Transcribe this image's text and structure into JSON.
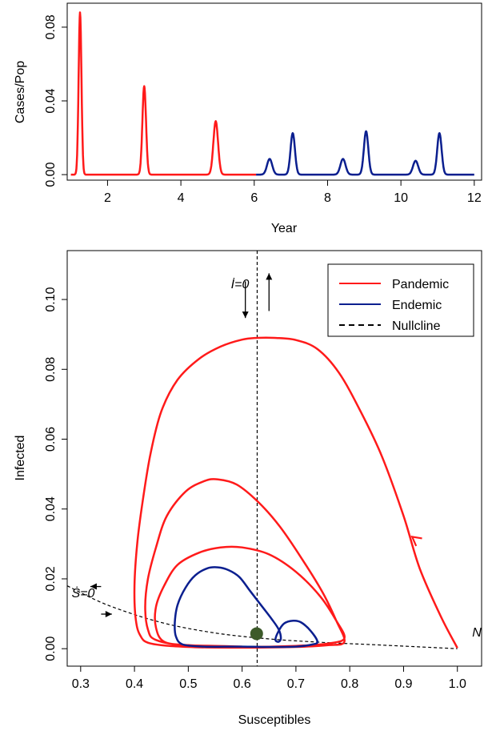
{
  "colors": {
    "pandemic": "#ff1a1a",
    "endemic": "#0b1f8f",
    "fixed_point": "#3d5a2a",
    "axis": "#000000"
  },
  "chart_data": [
    {
      "type": "line",
      "xlabel": "Year",
      "ylabel": "Cases/Pop",
      "xlim": [
        0.9,
        12.2
      ],
      "ylim": [
        -0.003,
        0.093
      ],
      "x_ticks": [
        2,
        4,
        6,
        8,
        10,
        12
      ],
      "y_ticks": [
        0.0,
        0.04,
        0.08
      ],
      "x_tick_labels": [
        "2",
        "4",
        "6",
        "8",
        "10",
        "12"
      ],
      "y_tick_labels": [
        "0.00",
        "0.04",
        "0.08"
      ],
      "series": [
        {
          "color": "pandemic",
          "x_range": [
            1.0,
            6.05
          ],
          "peaks": [
            {
              "x": 1.25,
              "y": 0.088,
              "w": 0.055
            },
            {
              "x": 3.0,
              "y": 0.048,
              "w": 0.07
            },
            {
              "x": 4.95,
              "y": 0.029,
              "w": 0.09
            }
          ]
        },
        {
          "color": "endemic",
          "x_range": [
            6.05,
            12.0
          ],
          "peaks": [
            {
              "x": 6.42,
              "y": 0.0085,
              "w": 0.1
            },
            {
              "x": 7.05,
              "y": 0.0225,
              "w": 0.085
            },
            {
              "x": 8.42,
              "y": 0.0085,
              "w": 0.1
            },
            {
              "x": 9.05,
              "y": 0.0235,
              "w": 0.085
            },
            {
              "x": 10.4,
              "y": 0.0075,
              "w": 0.1
            },
            {
              "x": 11.05,
              "y": 0.0225,
              "w": 0.085
            }
          ]
        }
      ]
    },
    {
      "type": "line",
      "xlabel": "Susceptibles",
      "ylabel": "Infected",
      "xlim": [
        0.275,
        1.045
      ],
      "ylim": [
        -0.005,
        0.114
      ],
      "x_ticks": [
        0.3,
        0.4,
        0.5,
        0.6,
        0.7,
        0.8,
        0.9,
        1.0
      ],
      "y_ticks": [
        0.0,
        0.02,
        0.04,
        0.06,
        0.08,
        0.1
      ],
      "x_tick_labels": [
        "0.3",
        "0.4",
        "0.5",
        "0.6",
        "0.7",
        "0.8",
        "0.9",
        "1.0"
      ],
      "y_tick_labels": [
        "0.00",
        "0.02",
        "0.04",
        "0.06",
        "0.08",
        "0.10"
      ],
      "legend": {
        "placement": "top-right",
        "entries": [
          {
            "label": "Pandemic",
            "style": "solid",
            "color": "pandemic"
          },
          {
            "label": "Endemic",
            "style": "solid",
            "color": "endemic"
          },
          {
            "label": "Nullcline",
            "style": "dashed",
            "color": "axis"
          }
        ]
      },
      "annotations": {
        "i_nullcline": "İ=0",
        "s_nullcline": "Ṡ=0",
        "n_label": "N"
      },
      "i_nullcline_x": 0.628,
      "s_nullcline": [
        [
          0.275,
          0.018
        ],
        [
          0.35,
          0.0125
        ],
        [
          0.45,
          0.0075
        ],
        [
          0.55,
          0.0045
        ],
        [
          0.65,
          0.0028
        ],
        [
          0.75,
          0.0018
        ],
        [
          0.85,
          0.0011
        ],
        [
          1.0,
          0.0
        ]
      ],
      "fixed_point": [
        0.627,
        0.0043
      ],
      "pandemic_path": [
        [
          1.0,
          0.0002
        ],
        [
          0.97,
          0.009
        ],
        [
          0.93,
          0.023
        ],
        [
          0.9,
          0.038
        ],
        [
          0.86,
          0.055
        ],
        [
          0.82,
          0.068
        ],
        [
          0.78,
          0.079
        ],
        [
          0.74,
          0.0858
        ],
        [
          0.7,
          0.0884
        ],
        [
          0.66,
          0.089
        ],
        [
          0.628,
          0.089
        ],
        [
          0.6,
          0.0885
        ],
        [
          0.56,
          0.0865
        ],
        [
          0.52,
          0.083
        ],
        [
          0.48,
          0.077
        ],
        [
          0.45,
          0.068
        ],
        [
          0.43,
          0.056
        ],
        [
          0.415,
          0.042
        ],
        [
          0.405,
          0.03
        ],
        [
          0.4,
          0.018
        ],
        [
          0.402,
          0.009
        ],
        [
          0.41,
          0.004
        ],
        [
          0.43,
          0.0015
        ],
        [
          0.5,
          0.0005
        ],
        [
          0.6,
          0.0003
        ],
        [
          0.7,
          0.0005
        ],
        [
          0.76,
          0.001
        ],
        [
          0.79,
          0.002
        ],
        [
          0.775,
          0.008
        ],
        [
          0.75,
          0.016
        ],
        [
          0.71,
          0.026
        ],
        [
          0.67,
          0.035
        ],
        [
          0.63,
          0.042
        ],
        [
          0.59,
          0.047
        ],
        [
          0.555,
          0.0485
        ],
        [
          0.53,
          0.048
        ],
        [
          0.495,
          0.045
        ],
        [
          0.46,
          0.038
        ],
        [
          0.44,
          0.029
        ],
        [
          0.425,
          0.02
        ],
        [
          0.42,
          0.012
        ],
        [
          0.425,
          0.0055
        ],
        [
          0.44,
          0.0025
        ],
        [
          0.5,
          0.0008
        ],
        [
          0.6,
          0.0005
        ],
        [
          0.7,
          0.0008
        ],
        [
          0.76,
          0.0015
        ],
        [
          0.79,
          0.003
        ],
        [
          0.775,
          0.008
        ],
        [
          0.745,
          0.015
        ],
        [
          0.7,
          0.022
        ],
        [
          0.65,
          0.027
        ],
        [
          0.6,
          0.029
        ],
        [
          0.56,
          0.029
        ],
        [
          0.52,
          0.0275
        ],
        [
          0.48,
          0.024
        ],
        [
          0.455,
          0.018
        ],
        [
          0.44,
          0.012
        ],
        [
          0.44,
          0.006
        ],
        [
          0.455,
          0.002
        ],
        [
          0.5,
          0.001
        ],
        [
          0.55,
          0.0008
        ],
        [
          0.6,
          0.0006
        ]
      ],
      "endemic_path": [
        [
          0.6,
          0.0006
        ],
        [
          0.65,
          0.0005
        ],
        [
          0.7,
          0.0006
        ],
        [
          0.73,
          0.0012
        ],
        [
          0.74,
          0.002
        ],
        [
          0.728,
          0.005
        ],
        [
          0.71,
          0.0075
        ],
        [
          0.695,
          0.008
        ],
        [
          0.678,
          0.0072
        ],
        [
          0.667,
          0.0048
        ],
        [
          0.662,
          0.0025
        ],
        [
          0.668,
          0.002
        ],
        [
          0.672,
          0.003
        ],
        [
          0.668,
          0.0055
        ],
        [
          0.655,
          0.0085
        ],
        [
          0.635,
          0.0125
        ],
        [
          0.615,
          0.0165
        ],
        [
          0.595,
          0.0205
        ],
        [
          0.575,
          0.0225
        ],
        [
          0.555,
          0.0233
        ],
        [
          0.535,
          0.023
        ],
        [
          0.513,
          0.021
        ],
        [
          0.495,
          0.0175
        ],
        [
          0.48,
          0.0125
        ],
        [
          0.475,
          0.0075
        ],
        [
          0.477,
          0.0035
        ],
        [
          0.49,
          0.0012
        ],
        [
          0.53,
          0.0006
        ],
        [
          0.58,
          0.0006
        ],
        [
          0.6,
          0.0006
        ]
      ],
      "flow_arrows": [
        {
          "from": [
            0.318,
            0.0178
          ],
          "to": [
            0.338,
            0.0178
          ],
          "head": "left"
        },
        {
          "from": [
            0.338,
            0.0099
          ],
          "to": [
            0.358,
            0.0099
          ],
          "head": "right"
        },
        {
          "from": [
            0.606,
            0.1052
          ],
          "to": [
            0.606,
            0.0947
          ],
          "head": "down"
        },
        {
          "from": [
            0.65,
            0.0967
          ],
          "to": [
            0.65,
            0.1075
          ],
          "head": "up"
        }
      ],
      "path_arrow": {
        "at": [
          0.923,
          0.0312
        ],
        "toward": [
          0.918,
          0.0318
        ]
      }
    }
  ]
}
